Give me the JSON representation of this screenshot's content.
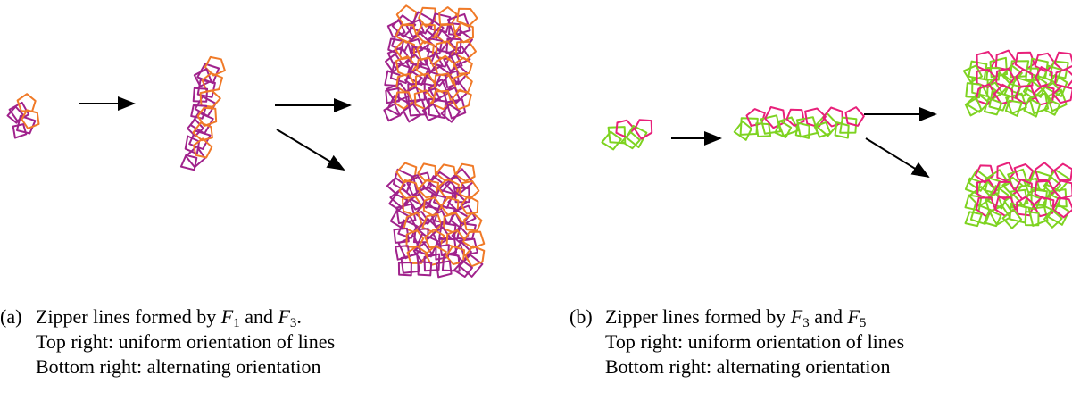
{
  "captions": [
    {
      "label": "(a)",
      "lines": [
        [
          "Zipper lines formed by ",
          {
            "var": "F",
            "sub": "1"
          },
          " and ",
          {
            "var": "F",
            "sub": "3"
          },
          "."
        ],
        [
          "Top right: uniform orientation of lines"
        ],
        [
          "Bottom right: alternating orientation"
        ]
      ]
    },
    {
      "label": "(b)",
      "lines": [
        [
          "Zipper lines formed by ",
          {
            "var": "F",
            "sub": "3"
          },
          " and ",
          {
            "var": "F",
            "sub": "5"
          }
        ],
        [
          "Top right: uniform orientation of lines"
        ],
        [
          "Bottom right: alternating orientation"
        ]
      ]
    }
  ]
}
